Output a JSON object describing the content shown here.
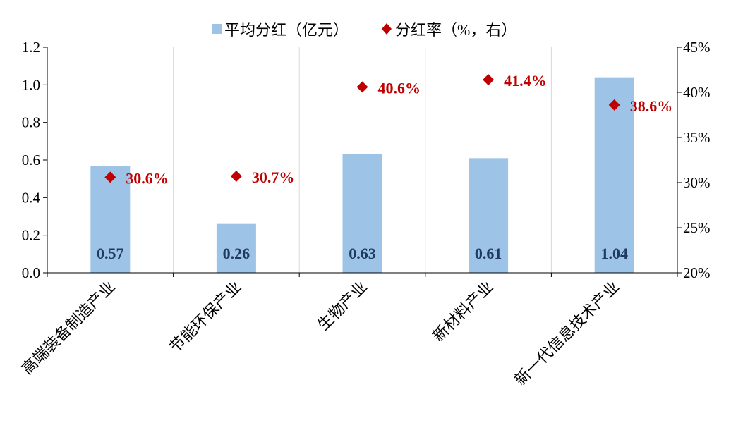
{
  "chart_data": {
    "type": "bar",
    "categories": [
      "高端装备制造产业",
      "节能环保产业",
      "生物产业",
      "新材料产业",
      "新一代信息技术产业"
    ],
    "series": [
      {
        "name": "平均分红（亿元）",
        "kind": "bar",
        "axis": "left",
        "values": [
          0.57,
          0.26,
          0.63,
          0.61,
          1.04
        ],
        "labels": [
          "0.57",
          "0.26",
          "0.63",
          "0.61",
          "1.04"
        ]
      },
      {
        "name": "分红率（%，右）",
        "kind": "scatter",
        "marker": "diamond",
        "axis": "right",
        "values": [
          30.6,
          30.7,
          40.6,
          41.4,
          38.6
        ],
        "labels": [
          "30.6%",
          "30.7%",
          "40.6%",
          "41.4%",
          "38.6%"
        ]
      }
    ],
    "y_left": {
      "range": [
        0,
        1.2
      ],
      "ticks": [
        0,
        0.2,
        0.4,
        0.6,
        0.8,
        1.0,
        1.2
      ],
      "tick_labels": [
        "0.0",
        "0.2",
        "0.4",
        "0.6",
        "0.8",
        "1.0",
        "1.2"
      ]
    },
    "y_right": {
      "range": [
        20,
        45
      ],
      "ticks": [
        20,
        25,
        30,
        35,
        40,
        45
      ],
      "tick_labels": [
        "20%",
        "25%",
        "30%",
        "35%",
        "40%",
        "45%"
      ]
    },
    "grid": {
      "vertical_category_lines": true,
      "horizontal": false
    },
    "legend": {
      "position": "top-center"
    },
    "colors": {
      "bar": "#9dc3e6",
      "bar_label": "#1f3864",
      "marker": "#c00000",
      "rate_label": "#c00000",
      "axis": "#000000",
      "grid": "#d9d9d9"
    }
  }
}
